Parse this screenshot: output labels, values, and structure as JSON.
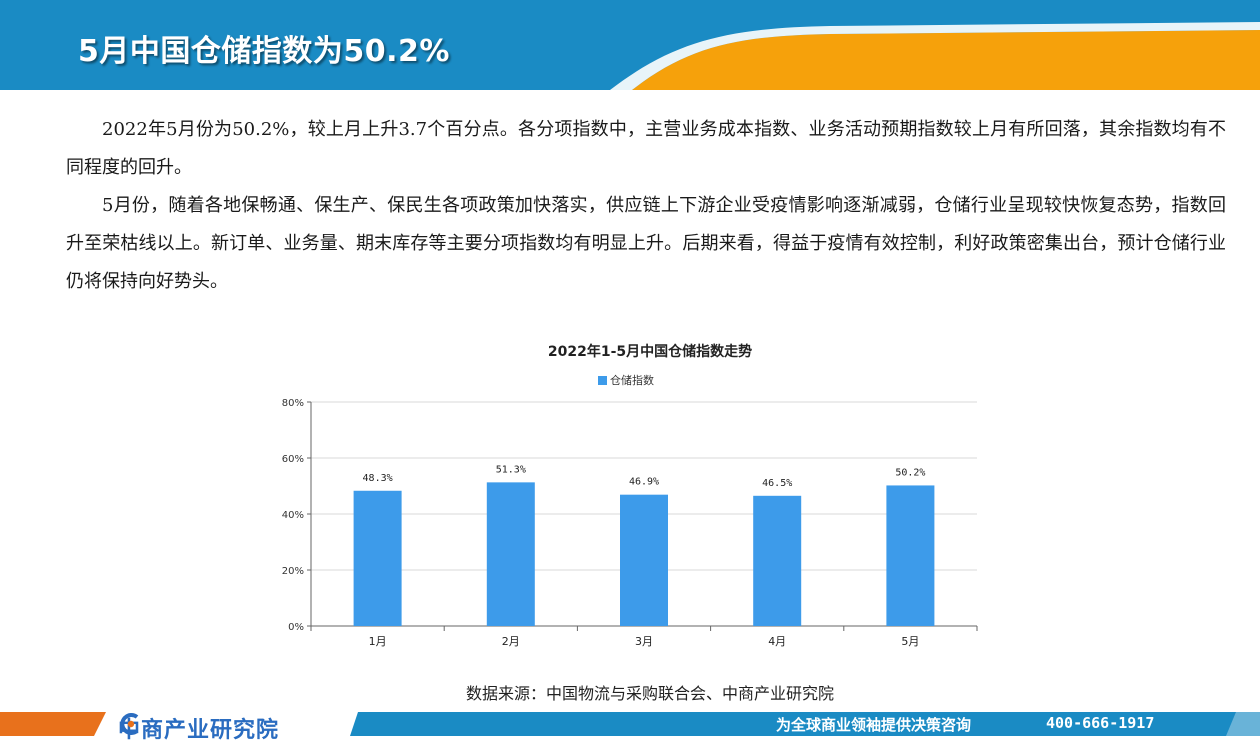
{
  "header": {
    "title": "5月中国仓储指数为50.2%",
    "colors": {
      "blue": "#1a8bc4",
      "orange": "#f6a10b"
    }
  },
  "body": {
    "paragraphs": [
      "2022年5月份为50.2%，较上月上升3.7个百分点。各分项指数中，主营业务成本指数、业务活动预期指数较上月有所回落，其余指数均有不同程度的回升。",
      "5月份，随着各地保畅通、保生产、保民生各项政策加快落实，供应链上下游企业受疫情影响逐渐减弱，仓储行业呈现较快恢复态势，指数回升至荣枯线以上。新订单、业务量、期末库存等主要分项指数均有明显上升。后期来看，得益于疫情有效控制，利好政策密集出台，预计仓储行业仍将保持向好势头。"
    ]
  },
  "chart_data": {
    "type": "bar",
    "title": "2022年1-5月中国仓储指数走势",
    "categories": [
      "1月",
      "2月",
      "3月",
      "4月",
      "5月"
    ],
    "series": [
      {
        "name": "仓储指数",
        "values": [
          48.3,
          51.3,
          46.9,
          46.5,
          50.2
        ],
        "labels": [
          "48.3%",
          "51.3%",
          "46.9%",
          "46.5%",
          "50.2%"
        ]
      }
    ],
    "ylim": [
      0,
      80
    ],
    "yticks": [
      0,
      20,
      40,
      60,
      80
    ],
    "ytick_labels": [
      "0%",
      "20%",
      "40%",
      "60%",
      "80%"
    ],
    "grid": true,
    "legend": "top",
    "bar_color": "#3d9bea"
  },
  "source": "数据来源：中国物流与采购联合会、中商产业研究院",
  "footer": {
    "logo_name": "中商产业研究院",
    "slogan": "为全球商业领袖提供决策咨询",
    "phone": "400-666-1917",
    "colors": {
      "orange": "#e8711c",
      "blue": "#1a8bc4",
      "logo": "#2a6cc0"
    }
  }
}
